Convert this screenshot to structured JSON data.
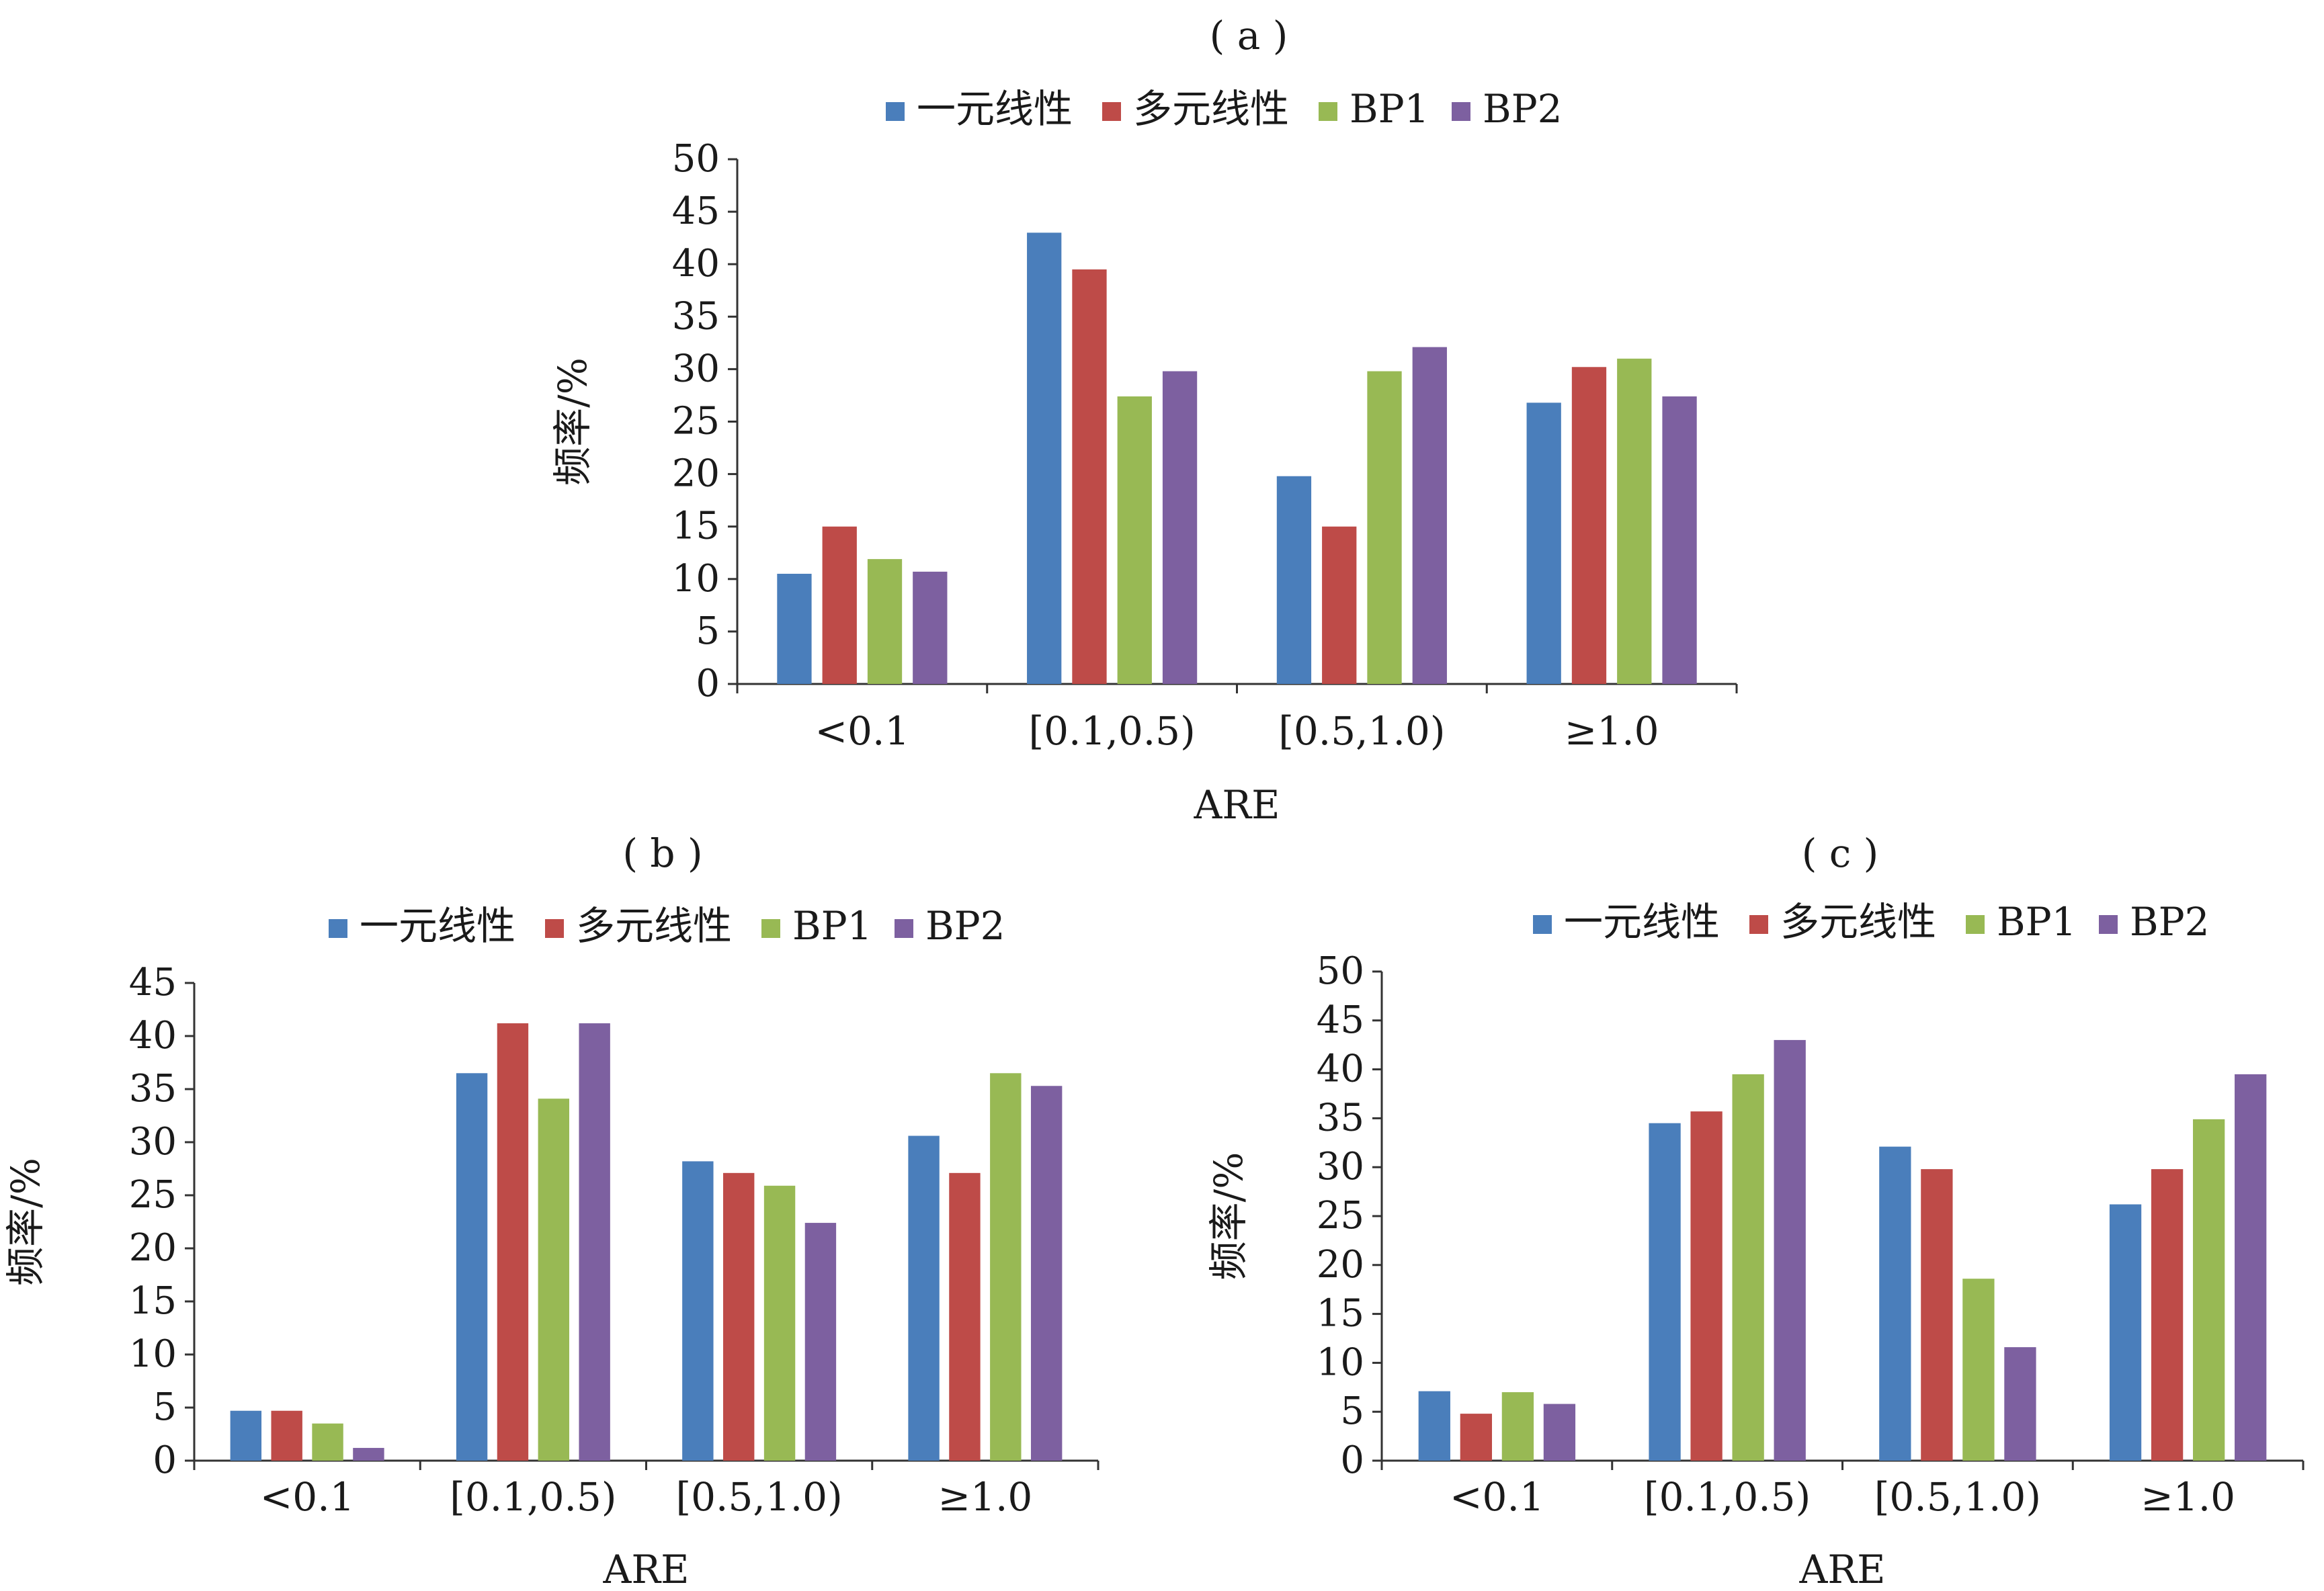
{
  "colors": {
    "series": [
      "#4A7EBB",
      "#BE4B48",
      "#98B954",
      "#7D60A0"
    ],
    "axis": "#333333",
    "text": "#1a1a1a"
  },
  "chart_data": [
    {
      "id": "a",
      "panel_label": "( a )",
      "type": "bar",
      "categories": [
        "<0.1",
        "[0.1,0.5)",
        "[0.5,1.0)",
        "≥1.0"
      ],
      "series": [
        {
          "name": "一元线性",
          "values": [
            10.5,
            43.0,
            19.8,
            26.8
          ]
        },
        {
          "name": "多元线性",
          "values": [
            15.0,
            39.5,
            15.0,
            30.2
          ]
        },
        {
          "name": "BP1",
          "values": [
            11.9,
            27.4,
            29.8,
            31.0
          ]
        },
        {
          "name": "BP2",
          "values": [
            10.7,
            29.8,
            32.1,
            27.4
          ]
        }
      ],
      "xlabel": "ARE",
      "ylabel": "频率/%",
      "ylim": [
        0,
        50
      ],
      "yticks": [
        "0",
        "5",
        "10",
        "15",
        "20",
        "25",
        "30",
        "35",
        "40",
        "45",
        "50"
      ],
      "legend": "top-center",
      "grid": false
    },
    {
      "id": "b",
      "panel_label": "( b )",
      "type": "bar",
      "categories": [
        "<0.1",
        "[0.1,0.5)",
        "[0.5,1.0)",
        "≥1.0"
      ],
      "series": [
        {
          "name": "一元线性",
          "values": [
            4.7,
            36.5,
            28.2,
            30.6
          ]
        },
        {
          "name": "多元线性",
          "values": [
            4.7,
            41.2,
            27.1,
            27.1
          ]
        },
        {
          "name": "BP1",
          "values": [
            3.5,
            34.1,
            25.9,
            36.5
          ]
        },
        {
          "name": "BP2",
          "values": [
            1.2,
            41.2,
            22.4,
            35.3
          ]
        }
      ],
      "xlabel": "ARE",
      "ylabel": "频率/%",
      "ylim": [
        0,
        45
      ],
      "yticks": [
        "0",
        "5",
        "10",
        "15",
        "20",
        "25",
        "30",
        "35",
        "40",
        "45"
      ],
      "legend": "top-center",
      "grid": false
    },
    {
      "id": "c",
      "panel_label": "( c )",
      "type": "bar",
      "categories": [
        "<0.1",
        "[0.1,0.5)",
        "[0.5,1.0)",
        "≥1.0"
      ],
      "series": [
        {
          "name": "一元线性",
          "values": [
            7.1,
            34.5,
            32.1,
            26.2
          ]
        },
        {
          "name": "多元线性",
          "values": [
            4.8,
            35.7,
            29.8,
            29.8
          ]
        },
        {
          "name": "BP1",
          "values": [
            7.0,
            39.5,
            18.6,
            34.9
          ]
        },
        {
          "name": "BP2",
          "values": [
            5.8,
            43.0,
            11.6,
            39.5
          ]
        }
      ],
      "xlabel": "ARE",
      "ylabel": "频率/%",
      "ylim": [
        0,
        50
      ],
      "yticks": [
        "0",
        "5",
        "10",
        "15",
        "20",
        "25",
        "30",
        "35",
        "40",
        "45",
        "50"
      ],
      "legend": "top-center",
      "grid": false
    }
  ]
}
